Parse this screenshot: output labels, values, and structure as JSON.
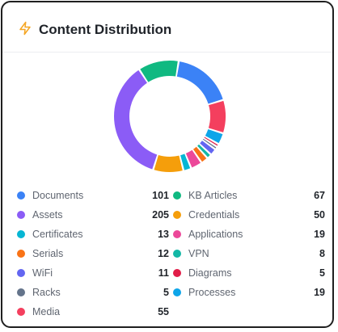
{
  "header": {
    "title": "Content Distribution",
    "icon": "lightning-icon",
    "icon_color": "#f5a623"
  },
  "chart_data": {
    "type": "pie",
    "donut": true,
    "title": "Content Distribution",
    "legend_position": "bottom",
    "series": [
      {
        "name": "Documents",
        "value": 101,
        "color": "#3b82f6"
      },
      {
        "name": "KB Articles",
        "value": 67,
        "color": "#10b981"
      },
      {
        "name": "Assets",
        "value": 205,
        "color": "#8b5cf6"
      },
      {
        "name": "Credentials",
        "value": 50,
        "color": "#f59e0b"
      },
      {
        "name": "Certificates",
        "value": 13,
        "color": "#06b6d4"
      },
      {
        "name": "Applications",
        "value": 19,
        "color": "#ec4899"
      },
      {
        "name": "Serials",
        "value": 12,
        "color": "#f97316"
      },
      {
        "name": "VPN",
        "value": 8,
        "color": "#14b8a6"
      },
      {
        "name": "WiFi",
        "value": 11,
        "color": "#6366f1"
      },
      {
        "name": "Diagrams",
        "value": 5,
        "color": "#e11d48"
      },
      {
        "name": "Racks",
        "value": 5,
        "color": "#64748b"
      },
      {
        "name": "Processes",
        "value": 19,
        "color": "#0ea5e9"
      },
      {
        "name": "Media",
        "value": 55,
        "color": "#f43f5e"
      }
    ]
  }
}
